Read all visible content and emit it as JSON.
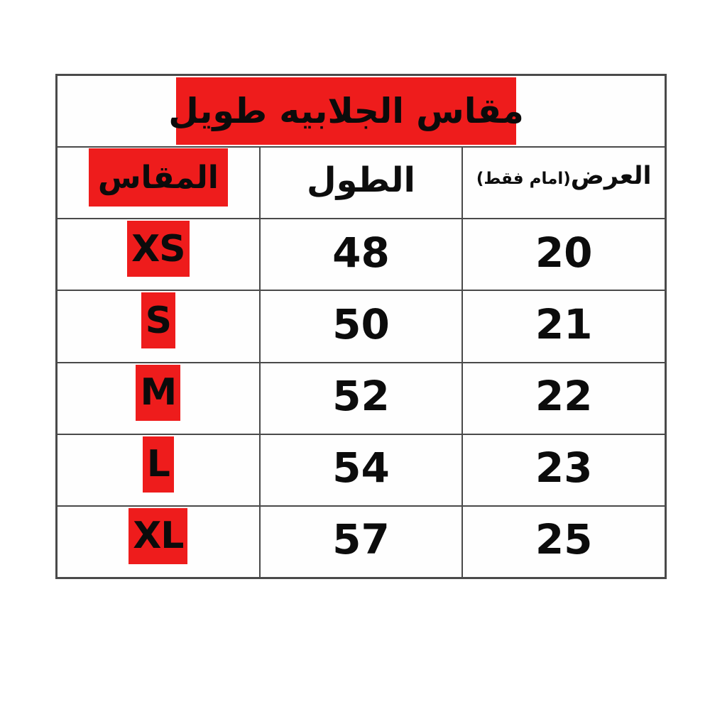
{
  "table": {
    "title": "مقاس الجلابيه طويل",
    "header": {
      "size": "المقاس",
      "length": "الطول",
      "width_main": "العرض",
      "width_note": "(امام فقط)"
    },
    "rows": [
      {
        "size": "XS",
        "length": "48",
        "width": "20"
      },
      {
        "size": "S",
        "length": "50",
        "width": "21"
      },
      {
        "size": "M",
        "length": "52",
        "width": "22"
      },
      {
        "size": "L",
        "length": "54",
        "width": "23"
      },
      {
        "size": "XL",
        "length": "57",
        "width": "25"
      }
    ],
    "colors": {
      "highlight_red": "#ee1c1c",
      "border_gray": "#4a4a4a",
      "text_black": "#0d0d0d"
    }
  },
  "chart_data": {
    "type": "table",
    "title": "مقاس الجلابيه طويل",
    "columns": [
      "المقاس",
      "الطول",
      "العرض(امام فقط)"
    ],
    "rows": [
      [
        "XS",
        "48",
        "20"
      ],
      [
        "S",
        "50",
        "21"
      ],
      [
        "M",
        "52",
        "22"
      ],
      [
        "L",
        "54",
        "23"
      ],
      [
        "XL",
        "57",
        "25"
      ]
    ]
  }
}
